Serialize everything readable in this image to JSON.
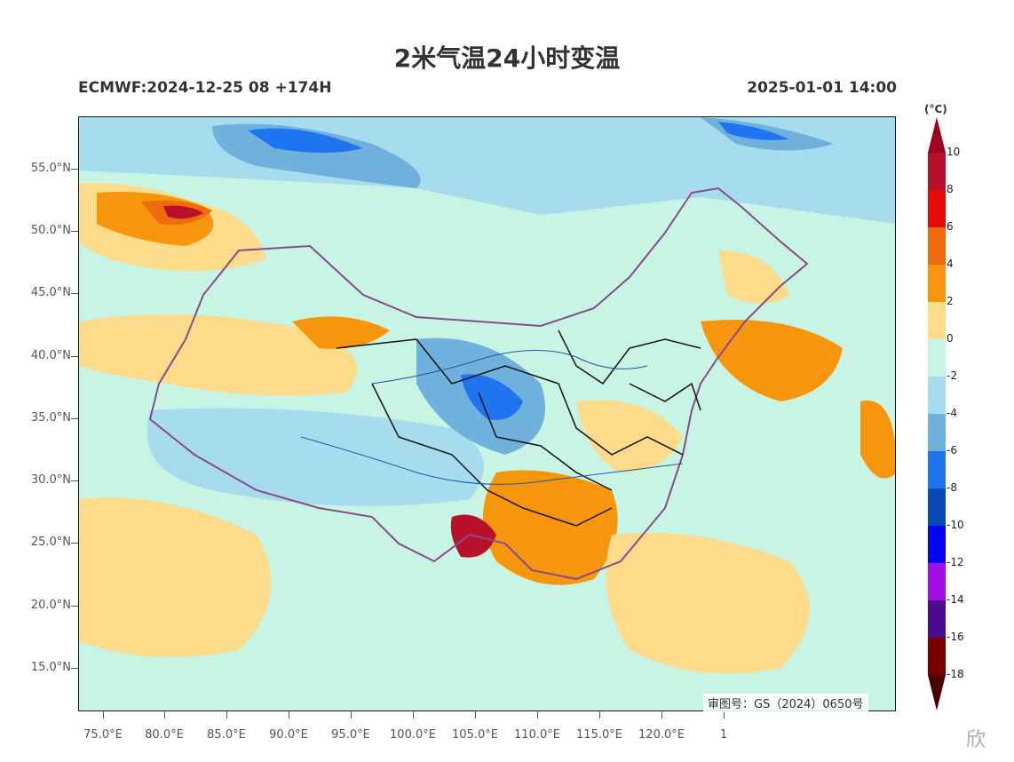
{
  "title": "2米气温24小时变温",
  "model_run": "ECMWF:2024-12-25 08 +174H",
  "valid_time": "2025-01-01 14:00",
  "colorbar": {
    "unit": "(°C)",
    "labels": [
      "10",
      "8",
      "6",
      "4",
      "2",
      "0",
      "-2",
      "-4",
      "-6",
      "-8",
      "-10",
      "-12",
      "-14",
      "-16",
      "-18"
    ],
    "colors": [
      "#b8102a",
      "#e50b0b",
      "#f06a0e",
      "#f7950c",
      "#fcdb8a",
      "#c7f4e3",
      "#a7dcef",
      "#6fb1dc",
      "#1f75f0",
      "#0a49b8",
      "#0505f5",
      "#a20ee6",
      "#4c0a8e",
      "#7a0000"
    ],
    "top_color": "#a00020",
    "bottom_color": "#4a0000"
  },
  "axes": {
    "lat_ticks": [
      "55.0°N",
      "50.0°N",
      "45.0°N",
      "40.0°N",
      "35.0°N",
      "30.0°N",
      "25.0°N",
      "20.0°N",
      "15.0°N"
    ],
    "lon_ticks": [
      "75.0°E",
      "80.0°E",
      "85.0°E",
      "90.0°E",
      "95.0°E",
      "100.0°E",
      "105.0°E",
      "110.0°E",
      "115.0°E",
      "120.0°E",
      "1"
    ]
  },
  "review_number": "审图号：GS（2024）0650号",
  "watermark": "欣"
}
